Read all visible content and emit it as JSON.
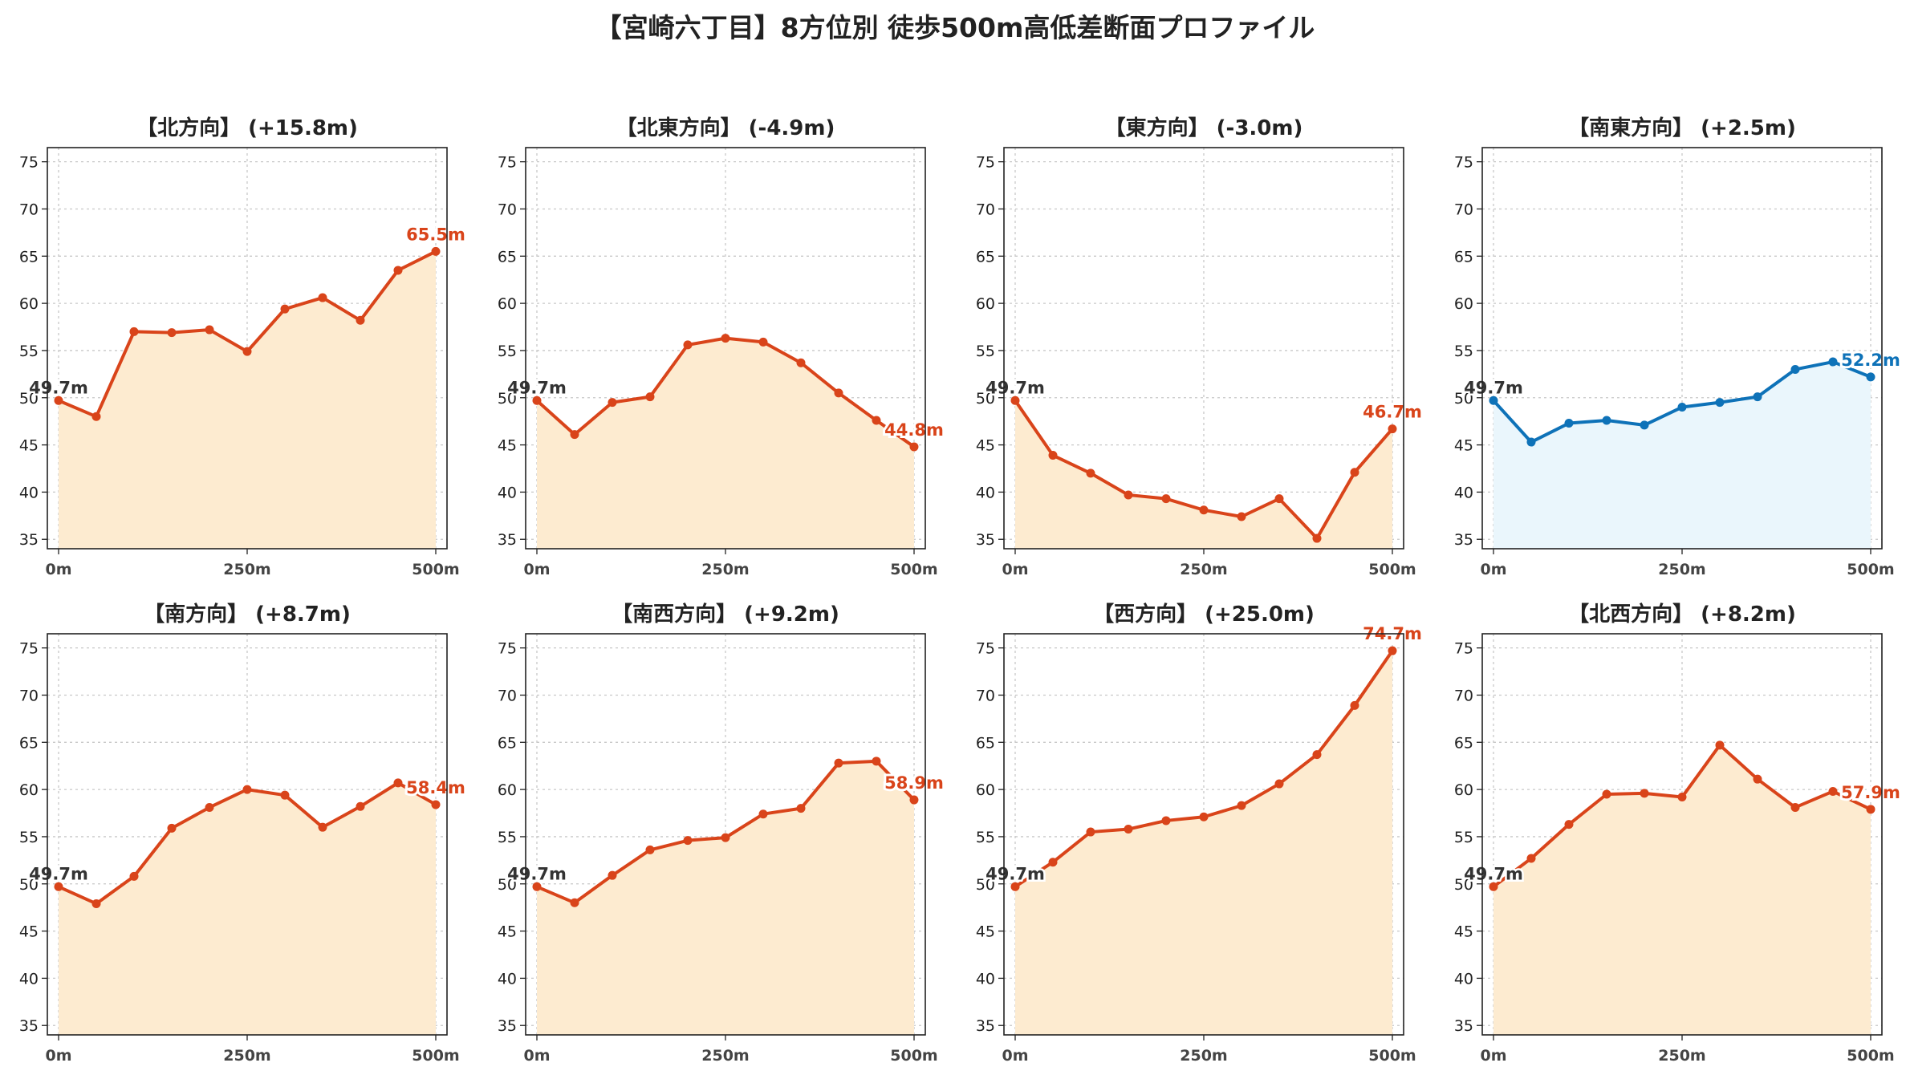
{
  "title": "【宮崎六丁目】8方位別 徒歩500m高低差断面プロファイル",
  "colors": {
    "rise_line": "#d9441a",
    "rise_fill": "#fdebd0",
    "flat_line": "#0e72b8",
    "flat_fill": "#eaf6fc",
    "start_label": "#333333",
    "grid": "#c8c8c8"
  },
  "chart_data": [
    {
      "type": "area",
      "title": "【北方向】 (+15.8m)",
      "x": [
        0,
        50,
        100,
        150,
        200,
        250,
        300,
        350,
        400,
        450,
        500
      ],
      "values": [
        49.7,
        48.0,
        57.0,
        56.9,
        57.2,
        54.9,
        59.4,
        60.6,
        58.2,
        63.5,
        65.5
      ],
      "style": "rise",
      "start_label": "49.7m",
      "end_label": "65.5m",
      "xticks": [
        "0m",
        "250m",
        "500m"
      ],
      "ylim": [
        34,
        76.5
      ],
      "yticks": [
        35,
        40,
        45,
        50,
        55,
        60,
        65,
        70,
        75
      ],
      "grid": true
    },
    {
      "type": "area",
      "title": "【北東方向】 (-4.9m)",
      "x": [
        0,
        50,
        100,
        150,
        200,
        250,
        300,
        350,
        400,
        450,
        500
      ],
      "values": [
        49.7,
        46.1,
        49.5,
        50.1,
        55.6,
        56.3,
        55.9,
        53.7,
        50.5,
        47.6,
        44.8
      ],
      "style": "rise",
      "start_label": "49.7m",
      "end_label": "44.8m",
      "xticks": [
        "0m",
        "250m",
        "500m"
      ],
      "ylim": [
        34,
        76.5
      ],
      "yticks": [
        35,
        40,
        45,
        50,
        55,
        60,
        65,
        70,
        75
      ],
      "grid": true
    },
    {
      "type": "area",
      "title": "【東方向】 (-3.0m)",
      "x": [
        0,
        50,
        100,
        150,
        200,
        250,
        300,
        350,
        400,
        450,
        500
      ],
      "values": [
        49.7,
        43.9,
        42.0,
        39.7,
        39.3,
        38.1,
        37.4,
        39.3,
        35.1,
        42.1,
        46.7
      ],
      "style": "rise",
      "start_label": "49.7m",
      "end_label": "46.7m",
      "xticks": [
        "0m",
        "250m",
        "500m"
      ],
      "ylim": [
        34,
        76.5
      ],
      "yticks": [
        35,
        40,
        45,
        50,
        55,
        60,
        65,
        70,
        75
      ],
      "grid": true
    },
    {
      "type": "area",
      "title": "【南東方向】 (+2.5m)",
      "x": [
        0,
        50,
        100,
        150,
        200,
        250,
        300,
        350,
        400,
        450,
        500
      ],
      "values": [
        49.7,
        45.3,
        47.3,
        47.6,
        47.1,
        49.0,
        49.5,
        50.1,
        53.0,
        53.8,
        52.2
      ],
      "style": "flat",
      "start_label": "49.7m",
      "end_label": "52.2m",
      "xticks": [
        "0m",
        "250m",
        "500m"
      ],
      "ylim": [
        34,
        76.5
      ],
      "yticks": [
        35,
        40,
        45,
        50,
        55,
        60,
        65,
        70,
        75
      ],
      "grid": true
    },
    {
      "type": "area",
      "title": "【南方向】 (+8.7m)",
      "x": [
        0,
        50,
        100,
        150,
        200,
        250,
        300,
        350,
        400,
        450,
        500
      ],
      "values": [
        49.7,
        47.9,
        50.8,
        55.9,
        58.1,
        60.0,
        59.4,
        56.0,
        58.2,
        60.7,
        58.4
      ],
      "style": "rise",
      "start_label": "49.7m",
      "end_label": "58.4m",
      "xticks": [
        "0m",
        "250m",
        "500m"
      ],
      "ylim": [
        34,
        76.5
      ],
      "yticks": [
        35,
        40,
        45,
        50,
        55,
        60,
        65,
        70,
        75
      ],
      "grid": true
    },
    {
      "type": "area",
      "title": "【南西方向】 (+9.2m)",
      "x": [
        0,
        50,
        100,
        150,
        200,
        250,
        300,
        350,
        400,
        450,
        500
      ],
      "values": [
        49.7,
        48.0,
        50.9,
        53.6,
        54.6,
        54.9,
        57.4,
        58.0,
        62.8,
        63.0,
        58.9
      ],
      "style": "rise",
      "start_label": "49.7m",
      "end_label": "58.9m",
      "xticks": [
        "0m",
        "250m",
        "500m"
      ],
      "ylim": [
        34,
        76.5
      ],
      "yticks": [
        35,
        40,
        45,
        50,
        55,
        60,
        65,
        70,
        75
      ],
      "grid": true
    },
    {
      "type": "area",
      "title": "【西方向】 (+25.0m)",
      "x": [
        0,
        50,
        100,
        150,
        200,
        250,
        300,
        350,
        400,
        450,
        500
      ],
      "values": [
        49.7,
        52.3,
        55.5,
        55.8,
        56.7,
        57.1,
        58.3,
        60.6,
        63.7,
        68.9,
        74.7
      ],
      "style": "rise",
      "start_label": "49.7m",
      "end_label": "74.7m",
      "xticks": [
        "0m",
        "250m",
        "500m"
      ],
      "ylim": [
        34,
        76.5
      ],
      "yticks": [
        35,
        40,
        45,
        50,
        55,
        60,
        65,
        70,
        75
      ],
      "grid": true
    },
    {
      "type": "area",
      "title": "【北西方向】 (+8.2m)",
      "x": [
        0,
        50,
        100,
        150,
        200,
        250,
        300,
        350,
        400,
        450,
        500
      ],
      "values": [
        49.7,
        52.7,
        56.3,
        59.5,
        59.6,
        59.2,
        64.7,
        61.1,
        58.1,
        59.8,
        57.9
      ],
      "style": "rise",
      "start_label": "49.7m",
      "end_label": "57.9m",
      "xticks": [
        "0m",
        "250m",
        "500m"
      ],
      "ylim": [
        34,
        76.5
      ],
      "yticks": [
        35,
        40,
        45,
        50,
        55,
        60,
        65,
        70,
        75
      ],
      "grid": true
    }
  ]
}
